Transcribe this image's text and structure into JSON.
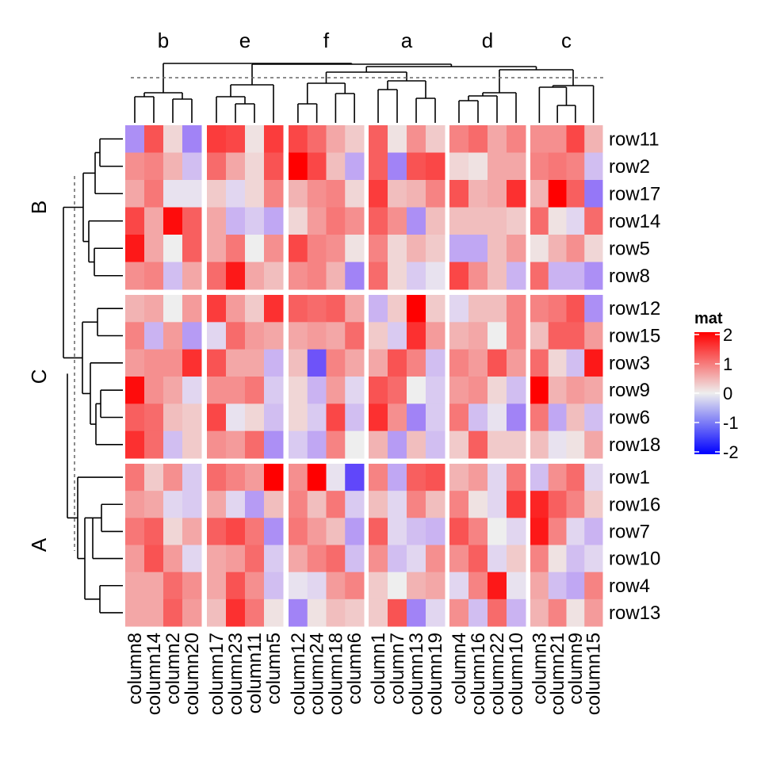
{
  "chart_data": {
    "type": "heatmap",
    "title": "",
    "legend": {
      "title": "mat",
      "ticks": [
        "2",
        "1",
        "0",
        "-1",
        "-2"
      ],
      "tick_values": [
        2,
        1,
        0,
        -1,
        -2
      ],
      "range": [
        -2,
        2
      ],
      "colors": {
        "low": "#0000FF",
        "mid": "#EEEEEE",
        "high": "#FF0000"
      },
      "placement": "right"
    },
    "column_groups": [
      {
        "label": "b",
        "columns": [
          "column8",
          "column14",
          "column2",
          "column20"
        ]
      },
      {
        "label": "e",
        "columns": [
          "column17",
          "column23",
          "column11",
          "column5"
        ]
      },
      {
        "label": "f",
        "columns": [
          "column12",
          "column24",
          "column18",
          "column6"
        ]
      },
      {
        "label": "a",
        "columns": [
          "column1",
          "column7",
          "column13",
          "column19"
        ]
      },
      {
        "label": "d",
        "columns": [
          "column4",
          "column16",
          "column22",
          "column10"
        ]
      },
      {
        "label": "c",
        "columns": [
          "column3",
          "column21",
          "column9",
          "column15"
        ]
      }
    ],
    "row_groups": [
      {
        "label": "B",
        "rows": [
          "row11",
          "row2",
          "row17",
          "row14",
          "row5",
          "row8"
        ]
      },
      {
        "label": "C",
        "rows": [
          "row12",
          "row15",
          "row3",
          "row9",
          "row6",
          "row18"
        ]
      },
      {
        "label": "A",
        "rows": [
          "row1",
          "row16",
          "row7",
          "row10",
          "row4",
          "row13"
        ]
      }
    ],
    "values": [
      [
        -0.8,
        1.3,
        0.2,
        -0.9,
        1.5,
        1.4,
        0.1,
        1.5,
        1.4,
        1.1,
        0.6,
        0.3,
        1.2,
        0.1,
        0.8,
        0.3,
        0.9,
        1.1,
        0.6,
        0.9,
        0.8,
        0.8,
        1.4,
        0.5
      ],
      [
        0.8,
        0.9,
        0.5,
        -0.4,
        1.1,
        0.6,
        0.2,
        1.3,
        2.0,
        1.4,
        0.4,
        -0.6,
        1.2,
        -0.9,
        1.3,
        1.4,
        0.2,
        0.1,
        0.6,
        0.6,
        0.9,
        1.0,
        0.9,
        -0.4
      ],
      [
        0.6,
        1.0,
        -0.1,
        -0.1,
        0.3,
        -0.2,
        0.2,
        0.9,
        0.5,
        0.8,
        0.9,
        0.2,
        1.5,
        0.4,
        0.5,
        0.9,
        1.3,
        0.5,
        0.6,
        1.6,
        0.5,
        2.0,
        1.2,
        -1.0
      ],
      [
        1.4,
        0.6,
        1.9,
        1.2,
        0.6,
        -0.5,
        -0.3,
        -0.6,
        0.2,
        0.7,
        1.0,
        0.8,
        1.2,
        0.8,
        -0.8,
        0.4,
        0.4,
        0.4,
        0.4,
        0.3,
        1.1,
        0.1,
        -0.2,
        1.1
      ],
      [
        1.8,
        0.6,
        0.0,
        1.2,
        0.6,
        1.0,
        0.0,
        0.8,
        1.4,
        0.9,
        0.8,
        0.1,
        0.9,
        0.2,
        0.5,
        0.3,
        -0.6,
        -0.6,
        0.4,
        0.7,
        0.1,
        0.5,
        0.8,
        0.2
      ],
      [
        0.8,
        0.9,
        -0.4,
        0.6,
        1.1,
        1.8,
        0.6,
        0.4,
        0.8,
        0.9,
        0.5,
        -0.9,
        1.1,
        0.2,
        -0.3,
        -0.1,
        1.4,
        0.8,
        0.4,
        -0.5,
        1.1,
        -0.5,
        -0.5,
        -0.8
      ],
      [
        0.5,
        0.6,
        0.0,
        0.7,
        1.5,
        0.7,
        0.3,
        1.6,
        1.2,
        1.1,
        1.2,
        0.6,
        -0.5,
        0.3,
        2.0,
        0.3,
        -0.2,
        0.4,
        0.4,
        0.9,
        0.9,
        1.0,
        1.3,
        -0.8
      ],
      [
        0.9,
        -0.5,
        0.7,
        -0.7,
        -0.2,
        1.1,
        0.7,
        0.6,
        0.6,
        0.7,
        0.6,
        1.1,
        0.3,
        -0.3,
        1.6,
        0.7,
        0.5,
        0.6,
        0.0,
        0.9,
        0.4,
        1.2,
        1.2,
        0.7
      ],
      [
        0.7,
        0.8,
        0.8,
        1.6,
        1.3,
        0.6,
        0.6,
        -0.5,
        0.4,
        -1.3,
        0.9,
        0.6,
        0.6,
        1.3,
        0.9,
        -0.4,
        0.9,
        0.7,
        1.3,
        0.7,
        1.1,
        0.2,
        -0.4,
        1.8
      ],
      [
        1.9,
        0.8,
        0.6,
        -0.2,
        0.8,
        0.8,
        1.0,
        -0.3,
        0.2,
        -0.5,
        0.7,
        -0.2,
        1.3,
        1.1,
        0.0,
        -0.3,
        0.7,
        0.8,
        0.2,
        -0.4,
        2.0,
        0.5,
        0.7,
        0.6
      ],
      [
        1.2,
        1.1,
        0.4,
        0.3,
        1.4,
        -0.1,
        0.2,
        -0.4,
        0.2,
        -0.3,
        1.4,
        -0.4,
        1.6,
        0.8,
        -0.9,
        -0.3,
        1.0,
        -0.4,
        -0.1,
        -0.9,
        1.0,
        -0.6,
        0.4,
        -0.4
      ],
      [
        1.6,
        1.1,
        -0.4,
        0.3,
        0.8,
        0.7,
        1.1,
        -0.8,
        -0.3,
        -0.6,
        0.9,
        0.0,
        0.5,
        -0.7,
        0.4,
        -0.4,
        0.3,
        1.2,
        0.3,
        0.3,
        0.4,
        -0.1,
        0.1,
        0.6
      ],
      [
        1.0,
        0.3,
        0.8,
        -0.3,
        1.1,
        0.9,
        0.7,
        2.0,
        0.8,
        2.0,
        -0.1,
        -1.4,
        0.9,
        -0.6,
        1.2,
        1.3,
        0.5,
        0.7,
        -0.2,
        1.0,
        -0.4,
        0.8,
        1.1,
        -0.2
      ],
      [
        0.7,
        0.6,
        -0.2,
        -0.3,
        0.6,
        -0.2,
        -0.7,
        0.4,
        0.9,
        0.4,
        1.0,
        -0.3,
        0.4,
        -0.2,
        0.9,
        0.4,
        0.9,
        0.1,
        -0.2,
        1.5,
        1.7,
        1.2,
        0.9,
        0.3
      ],
      [
        1.0,
        1.2,
        0.2,
        0.6,
        1.2,
        1.4,
        1.0,
        -0.8,
        1.0,
        0.7,
        0.4,
        -0.7,
        1.2,
        -0.2,
        -0.4,
        -0.5,
        1.3,
        0.9,
        0.0,
        -0.2,
        1.8,
        0.9,
        -0.2,
        -0.5
      ],
      [
        0.7,
        1.3,
        0.7,
        -0.2,
        0.6,
        0.7,
        1.1,
        -0.3,
        0.6,
        0.9,
        1.1,
        -0.4,
        0.8,
        -0.4,
        -0.2,
        0.8,
        0.8,
        1.2,
        -0.2,
        0.3,
        0.9,
        0.1,
        -0.4,
        -0.2
      ],
      [
        0.6,
        0.6,
        1.1,
        0.8,
        0.6,
        1.3,
        0.8,
        -0.4,
        -0.1,
        -0.2,
        0.7,
        0.9,
        0.3,
        0.0,
        0.5,
        0.6,
        -0.2,
        0.9,
        1.8,
        -0.1,
        0.6,
        -0.4,
        -0.6,
        0.9
      ],
      [
        0.6,
        0.6,
        1.2,
        0.7,
        0.4,
        1.6,
        1.0,
        0.1,
        -0.9,
        0.1,
        0.4,
        0.3,
        0.3,
        1.3,
        -0.9,
        -0.2,
        0.8,
        -0.4,
        1.1,
        -0.5,
        0.5,
        0.9,
        0.1,
        0.7
      ]
    ]
  }
}
